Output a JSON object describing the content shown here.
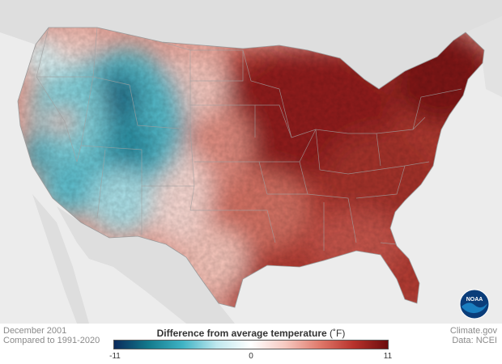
{
  "map": {
    "caption_date": "December 2001",
    "caption_baseline": "Compared to 1991-2020",
    "credit": "Climate.gov",
    "source": "Data: NCEI",
    "logo_text": "NOAA"
  },
  "legend": {
    "title": "Difference from average temperature",
    "unit": "(˚F)",
    "min_label": "-11",
    "mid_label": "0",
    "max_label": "11",
    "min": -11,
    "max": 11,
    "colors": [
      "#0b2a5b",
      "#137a8c",
      "#3fb3c4",
      "#bfe8ee",
      "#ffffff",
      "#f6c9c1",
      "#e07a6c",
      "#b8322c",
      "#6b0d0d"
    ]
  },
  "colors": {
    "background": "#ececec",
    "land_outside": "#dcdcdc",
    "water": "#ececec",
    "state_lines": "#9a9a9a"
  }
}
